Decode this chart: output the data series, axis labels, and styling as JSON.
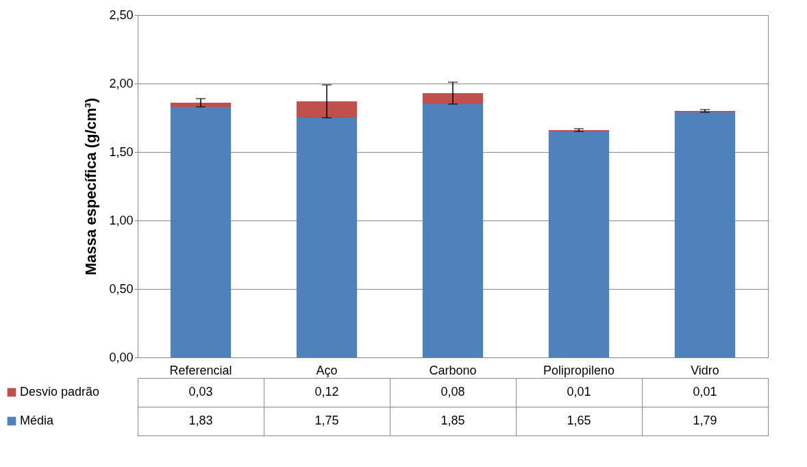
{
  "chart_data": {
    "type": "bar",
    "stacked": true,
    "ylabel": "Massa específica (g/cm³)",
    "categories": [
      "Referencial",
      "Aço",
      "Carbono",
      "Polipropileno",
      "Vidro"
    ],
    "series": [
      {
        "name": "Média",
        "color": "#4f81bd",
        "values": [
          1.83,
          1.75,
          1.85,
          1.65,
          1.79
        ],
        "value_labels": [
          "1,83",
          "1,75",
          "1,85",
          "1,65",
          "1,79"
        ]
      },
      {
        "name": "Desvio padrão",
        "color": "#c0504d",
        "values": [
          0.03,
          0.12,
          0.08,
          0.01,
          0.01
        ],
        "errors": [
          0.03,
          0.12,
          0.08,
          0.01,
          0.01
        ],
        "value_labels": [
          "0,03",
          "0,12",
          "0,08",
          "0,01",
          "0,01"
        ]
      }
    ],
    "ylim": [
      0,
      2.5
    ],
    "yticks": [
      {
        "value": 0,
        "label": "0,00"
      },
      {
        "value": 0.5,
        "label": "0,50"
      },
      {
        "value": 1,
        "label": "1,00"
      },
      {
        "value": 1.5,
        "label": "1,50"
      },
      {
        "value": 2,
        "label": "2,00"
      },
      {
        "value": 2.5,
        "label": "2,50"
      }
    ],
    "grid": "y",
    "legend": "bottom"
  }
}
